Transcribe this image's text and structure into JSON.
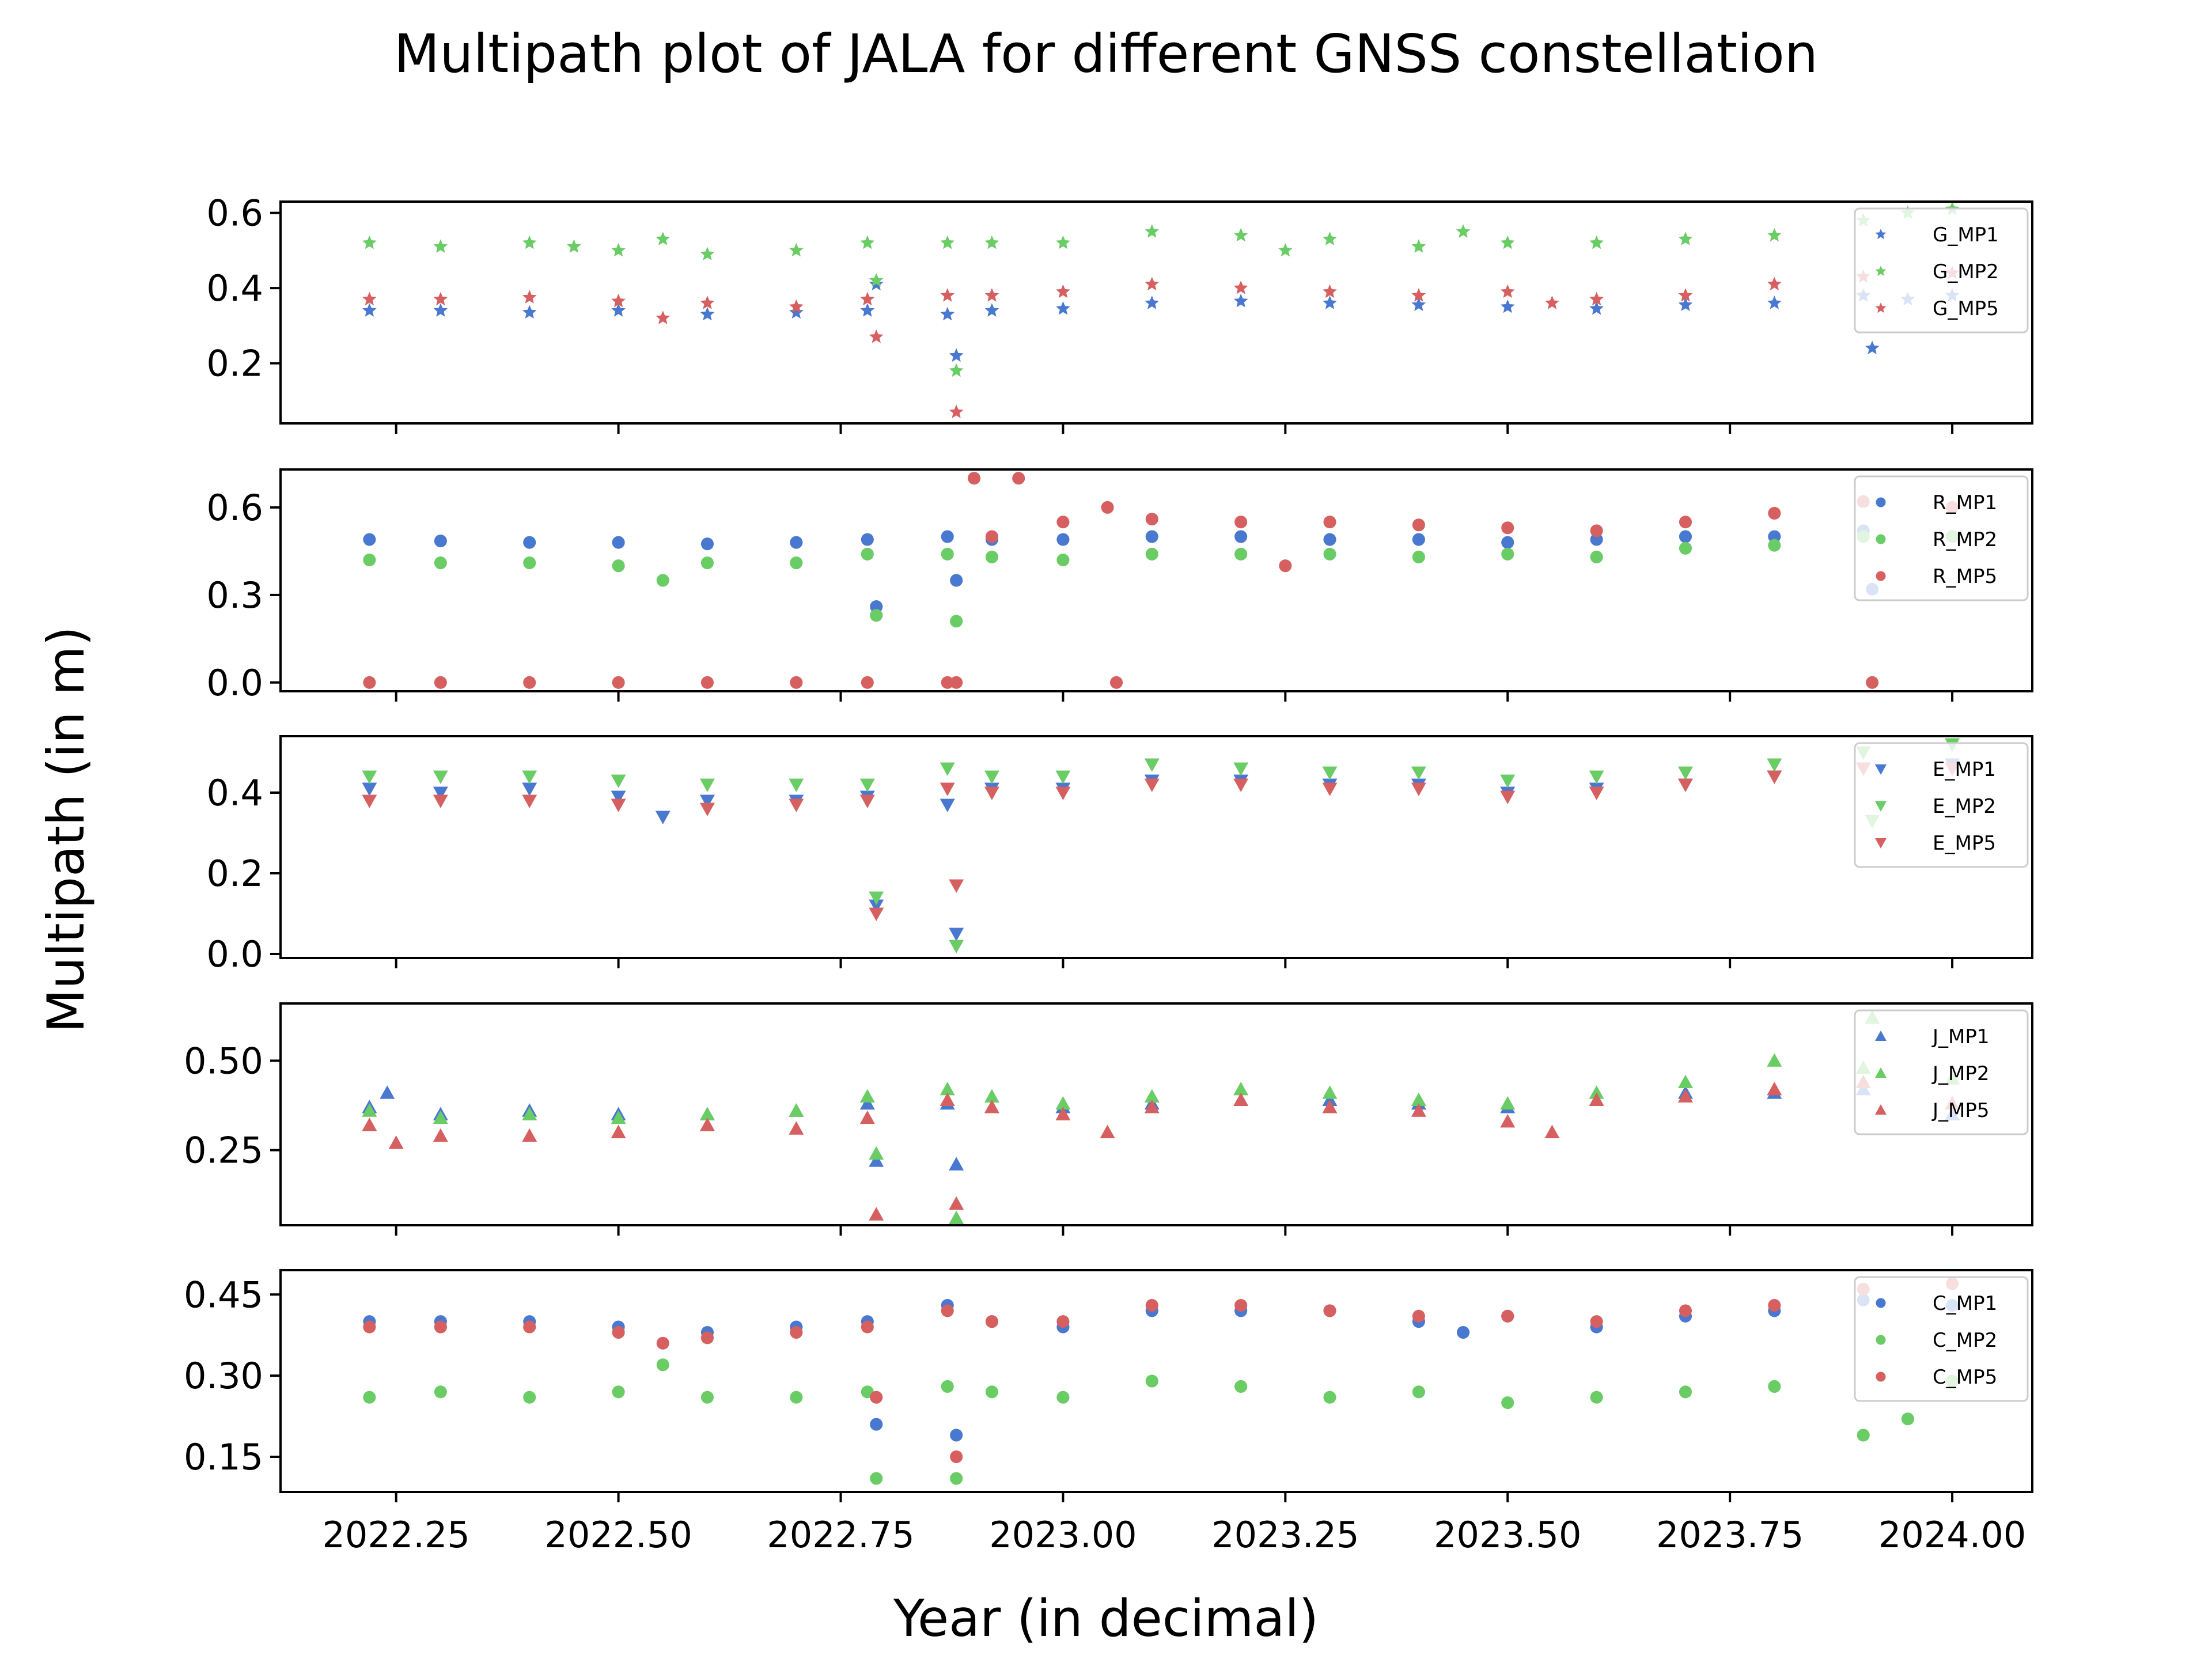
{
  "title": "Multipath plot of JALA for different GNSS constellation",
  "xlabel": "Year (in decimal)",
  "ylabel": "Multipath (in m)",
  "colors": {
    "MP1": "#4878d0",
    "MP2": "#6acc64",
    "MP5": "#d65f5f"
  },
  "x_ticks": [
    "2022.25",
    "2022.50",
    "2022.75",
    "2023.00",
    "2023.25",
    "2023.50",
    "2023.75",
    "2024.00"
  ],
  "chart_data": [
    {
      "type": "scatter",
      "constellation": "G",
      "marker": "star",
      "xlim": [
        2022.12,
        2024.09
      ],
      "ylim": [
        0.04,
        0.63
      ],
      "yticks": [
        0.2,
        0.4,
        0.6
      ],
      "ytick_labels": [
        "0.2",
        "0.4",
        "0.6"
      ],
      "legend": [
        "G_MP1",
        "G_MP2",
        "G_MP5"
      ],
      "legend_position": "upper right",
      "series": [
        {
          "name": "G_MP1",
          "key": "MP1",
          "x": [
            2022.22,
            2022.3,
            2022.4,
            2022.5,
            2022.6,
            2022.7,
            2022.78,
            2022.79,
            2022.87,
            2022.88,
            2022.92,
            2023.0,
            2023.1,
            2023.2,
            2023.3,
            2023.4,
            2023.5,
            2023.6,
            2023.7,
            2023.8,
            2023.9,
            2023.91,
            2023.95,
            2024.0
          ],
          "y": [
            0.34,
            0.34,
            0.335,
            0.34,
            0.33,
            0.335,
            0.34,
            0.41,
            0.33,
            0.22,
            0.34,
            0.345,
            0.36,
            0.365,
            0.36,
            0.355,
            0.35,
            0.345,
            0.355,
            0.36,
            0.38,
            0.24,
            0.37,
            0.38
          ]
        },
        {
          "name": "G_MP2",
          "key": "MP2",
          "x": [
            2022.22,
            2022.3,
            2022.4,
            2022.45,
            2022.5,
            2022.55,
            2022.6,
            2022.7,
            2022.78,
            2022.79,
            2022.87,
            2022.88,
            2022.92,
            2023.0,
            2023.1,
            2023.2,
            2023.25,
            2023.3,
            2023.4,
            2023.45,
            2023.5,
            2023.6,
            2023.7,
            2023.8,
            2023.9,
            2023.95,
            2024.0
          ],
          "y": [
            0.52,
            0.51,
            0.52,
            0.51,
            0.5,
            0.53,
            0.49,
            0.5,
            0.52,
            0.42,
            0.52,
            0.18,
            0.52,
            0.52,
            0.55,
            0.54,
            0.5,
            0.53,
            0.51,
            0.55,
            0.52,
            0.52,
            0.53,
            0.54,
            0.58,
            0.6,
            0.61
          ]
        },
        {
          "name": "G_MP5",
          "key": "MP5",
          "x": [
            2022.22,
            2022.3,
            2022.4,
            2022.5,
            2022.55,
            2022.6,
            2022.7,
            2022.78,
            2022.79,
            2022.87,
            2022.88,
            2022.92,
            2023.0,
            2023.1,
            2023.2,
            2023.3,
            2023.4,
            2023.5,
            2023.55,
            2023.6,
            2023.7,
            2023.8,
            2023.9,
            2024.0
          ],
          "y": [
            0.37,
            0.37,
            0.375,
            0.365,
            0.32,
            0.36,
            0.35,
            0.37,
            0.27,
            0.38,
            0.07,
            0.38,
            0.39,
            0.41,
            0.4,
            0.39,
            0.38,
            0.39,
            0.36,
            0.37,
            0.38,
            0.41,
            0.43,
            0.44
          ]
        }
      ]
    },
    {
      "type": "scatter",
      "constellation": "R",
      "marker": "circle",
      "xlim": [
        2022.12,
        2024.09
      ],
      "ylim": [
        -0.03,
        0.73
      ],
      "yticks": [
        0.0,
        0.3,
        0.6
      ],
      "ytick_labels": [
        "0.0",
        "0.3",
        "0.6"
      ],
      "legend": [
        "R_MP1",
        "R_MP2",
        "R_MP5"
      ],
      "legend_position": "upper right",
      "series": [
        {
          "name": "R_MP1",
          "key": "MP1",
          "x": [
            2022.22,
            2022.3,
            2022.4,
            2022.5,
            2022.6,
            2022.7,
            2022.78,
            2022.79,
            2022.87,
            2022.88,
            2022.92,
            2023.0,
            2023.1,
            2023.2,
            2023.3,
            2023.4,
            2023.5,
            2023.6,
            2023.7,
            2023.8,
            2023.9,
            2023.91,
            2024.0
          ],
          "y": [
            0.49,
            0.485,
            0.48,
            0.48,
            0.475,
            0.48,
            0.49,
            0.26,
            0.5,
            0.35,
            0.49,
            0.49,
            0.5,
            0.5,
            0.49,
            0.49,
            0.48,
            0.49,
            0.5,
            0.5,
            0.52,
            0.32,
            0.5
          ]
        },
        {
          "name": "R_MP2",
          "key": "MP2",
          "x": [
            2022.22,
            2022.3,
            2022.4,
            2022.5,
            2022.55,
            2022.6,
            2022.7,
            2022.78,
            2022.79,
            2022.87,
            2022.88,
            2022.92,
            2023.0,
            2023.1,
            2023.2,
            2023.3,
            2023.4,
            2023.5,
            2023.6,
            2023.7,
            2023.8,
            2023.9,
            2024.0
          ],
          "y": [
            0.42,
            0.41,
            0.41,
            0.4,
            0.35,
            0.41,
            0.41,
            0.44,
            0.23,
            0.44,
            0.21,
            0.43,
            0.42,
            0.44,
            0.44,
            0.44,
            0.43,
            0.44,
            0.43,
            0.46,
            0.47,
            0.5,
            0.5
          ]
        },
        {
          "name": "R_MP5",
          "key": "MP5",
          "x": [
            2022.22,
            2022.3,
            2022.4,
            2022.5,
            2022.6,
            2022.7,
            2022.78,
            2022.87,
            2022.88,
            2022.9,
            2022.92,
            2022.95,
            2023.0,
            2023.05,
            2023.06,
            2023.1,
            2023.2,
            2023.25,
            2023.3,
            2023.4,
            2023.5,
            2023.6,
            2023.7,
            2023.8,
            2023.9,
            2023.91,
            2024.0
          ],
          "y": [
            0.0,
            0.0,
            0.0,
            0.0,
            0.0,
            0.0,
            0.0,
            0.0,
            0.0,
            0.7,
            0.5,
            0.7,
            0.55,
            0.6,
            0.0,
            0.56,
            0.55,
            0.4,
            0.55,
            0.54,
            0.53,
            0.52,
            0.55,
            0.58,
            0.62,
            0.0,
            0.6
          ]
        }
      ]
    },
    {
      "type": "scatter",
      "constellation": "E",
      "marker": "triangle-down",
      "xlim": [
        2022.12,
        2024.09
      ],
      "ylim": [
        -0.01,
        0.54
      ],
      "yticks": [
        0.0,
        0.2,
        0.4
      ],
      "ytick_labels": [
        "0.0",
        "0.2",
        "0.4"
      ],
      "legend": [
        "E_MP1",
        "E_MP2",
        "E_MP5"
      ],
      "legend_position": "upper right",
      "series": [
        {
          "name": "E_MP1",
          "key": "MP1",
          "x": [
            2022.22,
            2022.3,
            2022.4,
            2022.5,
            2022.55,
            2022.6,
            2022.7,
            2022.78,
            2022.79,
            2022.87,
            2022.88,
            2022.92,
            2023.0,
            2023.1,
            2023.2,
            2023.3,
            2023.4,
            2023.5,
            2023.6,
            2023.7,
            2023.8,
            2023.9,
            2024.0
          ],
          "y": [
            0.41,
            0.4,
            0.41,
            0.39,
            0.34,
            0.38,
            0.38,
            0.39,
            0.12,
            0.37,
            0.05,
            0.41,
            0.41,
            0.43,
            0.43,
            0.42,
            0.42,
            0.4,
            0.41,
            0.42,
            0.44,
            0.46,
            0.47
          ]
        },
        {
          "name": "E_MP2",
          "key": "MP2",
          "x": [
            2022.22,
            2022.3,
            2022.4,
            2022.5,
            2022.6,
            2022.7,
            2022.78,
            2022.79,
            2022.87,
            2022.88,
            2022.92,
            2023.0,
            2023.1,
            2023.2,
            2023.3,
            2023.4,
            2023.5,
            2023.6,
            2023.7,
            2023.8,
            2023.9,
            2023.91,
            2024.0
          ],
          "y": [
            0.44,
            0.44,
            0.44,
            0.43,
            0.42,
            0.42,
            0.42,
            0.14,
            0.46,
            0.02,
            0.44,
            0.44,
            0.47,
            0.46,
            0.45,
            0.45,
            0.43,
            0.44,
            0.45,
            0.47,
            0.5,
            0.33,
            0.52
          ]
        },
        {
          "name": "E_MP5",
          "key": "MP5",
          "x": [
            2022.22,
            2022.3,
            2022.4,
            2022.5,
            2022.6,
            2022.7,
            2022.78,
            2022.79,
            2022.87,
            2022.88,
            2022.92,
            2023.0,
            2023.1,
            2023.2,
            2023.3,
            2023.4,
            2023.5,
            2023.6,
            2023.7,
            2023.8,
            2023.9,
            2024.0
          ],
          "y": [
            0.38,
            0.38,
            0.38,
            0.37,
            0.36,
            0.37,
            0.38,
            0.1,
            0.41,
            0.17,
            0.4,
            0.4,
            0.42,
            0.42,
            0.41,
            0.41,
            0.39,
            0.4,
            0.42,
            0.44,
            0.46,
            0.46
          ]
        }
      ]
    },
    {
      "type": "scatter",
      "constellation": "J",
      "marker": "triangle-up",
      "xlim": [
        2022.12,
        2024.09
      ],
      "ylim": [
        0.04,
        0.66
      ],
      "yticks": [
        0.25,
        0.5
      ],
      "ytick_labels": [
        "0.25",
        "0.50"
      ],
      "legend": [
        "J_MP1",
        "J_MP2",
        "J_MP5"
      ],
      "legend_position": "upper right",
      "series": [
        {
          "name": "J_MP1",
          "key": "MP1",
          "x": [
            2022.22,
            2022.24,
            2022.3,
            2022.4,
            2022.5,
            2022.6,
            2022.7,
            2022.78,
            2022.79,
            2022.87,
            2022.88,
            2022.92,
            2023.0,
            2023.1,
            2023.2,
            2023.3,
            2023.4,
            2023.5,
            2023.6,
            2023.7,
            2023.8,
            2023.9,
            2024.0
          ],
          "y": [
            0.37,
            0.41,
            0.35,
            0.36,
            0.35,
            0.35,
            0.36,
            0.38,
            0.22,
            0.38,
            0.21,
            0.37,
            0.37,
            0.38,
            0.39,
            0.39,
            0.38,
            0.37,
            0.39,
            0.41,
            0.41,
            0.42,
            0.35
          ]
        },
        {
          "name": "J_MP2",
          "key": "MP2",
          "x": [
            2022.22,
            2022.3,
            2022.4,
            2022.5,
            2022.6,
            2022.7,
            2022.78,
            2022.79,
            2022.87,
            2022.88,
            2022.92,
            2023.0,
            2023.1,
            2023.2,
            2023.3,
            2023.4,
            2023.5,
            2023.6,
            2023.7,
            2023.8,
            2023.9,
            2023.91,
            2024.0
          ],
          "y": [
            0.36,
            0.34,
            0.35,
            0.34,
            0.35,
            0.36,
            0.4,
            0.24,
            0.42,
            0.06,
            0.4,
            0.38,
            0.4,
            0.42,
            0.41,
            0.39,
            0.38,
            0.41,
            0.44,
            0.5,
            0.48,
            0.62,
            0.45
          ]
        },
        {
          "name": "J_MP5",
          "key": "MP5",
          "x": [
            2022.22,
            2022.25,
            2022.3,
            2022.4,
            2022.5,
            2022.6,
            2022.7,
            2022.78,
            2022.79,
            2022.87,
            2022.88,
            2022.92,
            2023.0,
            2023.05,
            2023.1,
            2023.2,
            2023.3,
            2023.4,
            2023.5,
            2023.55,
            2023.6,
            2023.7,
            2023.8,
            2023.9,
            2024.0
          ],
          "y": [
            0.32,
            0.27,
            0.29,
            0.29,
            0.3,
            0.32,
            0.31,
            0.34,
            0.07,
            0.39,
            0.1,
            0.37,
            0.35,
            0.3,
            0.37,
            0.39,
            0.37,
            0.36,
            0.33,
            0.3,
            0.39,
            0.4,
            0.42,
            0.44,
            0.38
          ]
        }
      ]
    },
    {
      "type": "scatter",
      "constellation": "C",
      "marker": "circle",
      "xlim": [
        2022.12,
        2024.09
      ],
      "ylim": [
        0.085,
        0.495
      ],
      "yticks": [
        0.15,
        0.3,
        0.45
      ],
      "ytick_labels": [
        "0.15",
        "0.30",
        "0.45"
      ],
      "legend": [
        "C_MP1",
        "C_MP2",
        "C_MP5"
      ],
      "legend_position": "upper right",
      "series": [
        {
          "name": "C_MP1",
          "key": "MP1",
          "x": [
            2022.22,
            2022.3,
            2022.4,
            2022.5,
            2022.6,
            2022.7,
            2022.78,
            2022.79,
            2022.87,
            2022.88,
            2022.92,
            2023.0,
            2023.1,
            2023.2,
            2023.3,
            2023.4,
            2023.45,
            2023.5,
            2023.6,
            2023.7,
            2023.8,
            2023.9,
            2024.0
          ],
          "y": [
            0.4,
            0.4,
            0.4,
            0.39,
            0.38,
            0.39,
            0.4,
            0.21,
            0.43,
            0.19,
            0.4,
            0.39,
            0.42,
            0.42,
            0.42,
            0.4,
            0.38,
            0.41,
            0.39,
            0.41,
            0.42,
            0.44,
            0.43
          ]
        },
        {
          "name": "C_MP2",
          "key": "MP2",
          "x": [
            2022.22,
            2022.3,
            2022.4,
            2022.5,
            2022.55,
            2022.6,
            2022.7,
            2022.78,
            2022.79,
            2022.87,
            2022.88,
            2022.92,
            2023.0,
            2023.1,
            2023.2,
            2023.3,
            2023.4,
            2023.5,
            2023.6,
            2023.7,
            2023.8,
            2023.9,
            2023.95,
            2024.0
          ],
          "y": [
            0.26,
            0.27,
            0.26,
            0.27,
            0.32,
            0.26,
            0.26,
            0.27,
            0.11,
            0.28,
            0.11,
            0.27,
            0.26,
            0.29,
            0.28,
            0.26,
            0.27,
            0.25,
            0.26,
            0.27,
            0.28,
            0.19,
            0.22,
            0.29
          ]
        },
        {
          "name": "C_MP5",
          "key": "MP5",
          "x": [
            2022.22,
            2022.3,
            2022.4,
            2022.5,
            2022.55,
            2022.6,
            2022.7,
            2022.78,
            2022.79,
            2022.87,
            2022.88,
            2022.92,
            2023.0,
            2023.1,
            2023.2,
            2023.3,
            2023.4,
            2023.5,
            2023.6,
            2023.7,
            2023.8,
            2023.9,
            2024.0
          ],
          "y": [
            0.39,
            0.39,
            0.39,
            0.38,
            0.36,
            0.37,
            0.38,
            0.39,
            0.26,
            0.42,
            0.15,
            0.4,
            0.4,
            0.43,
            0.43,
            0.42,
            0.41,
            0.41,
            0.4,
            0.42,
            0.43,
            0.46,
            0.47
          ]
        }
      ]
    }
  ]
}
